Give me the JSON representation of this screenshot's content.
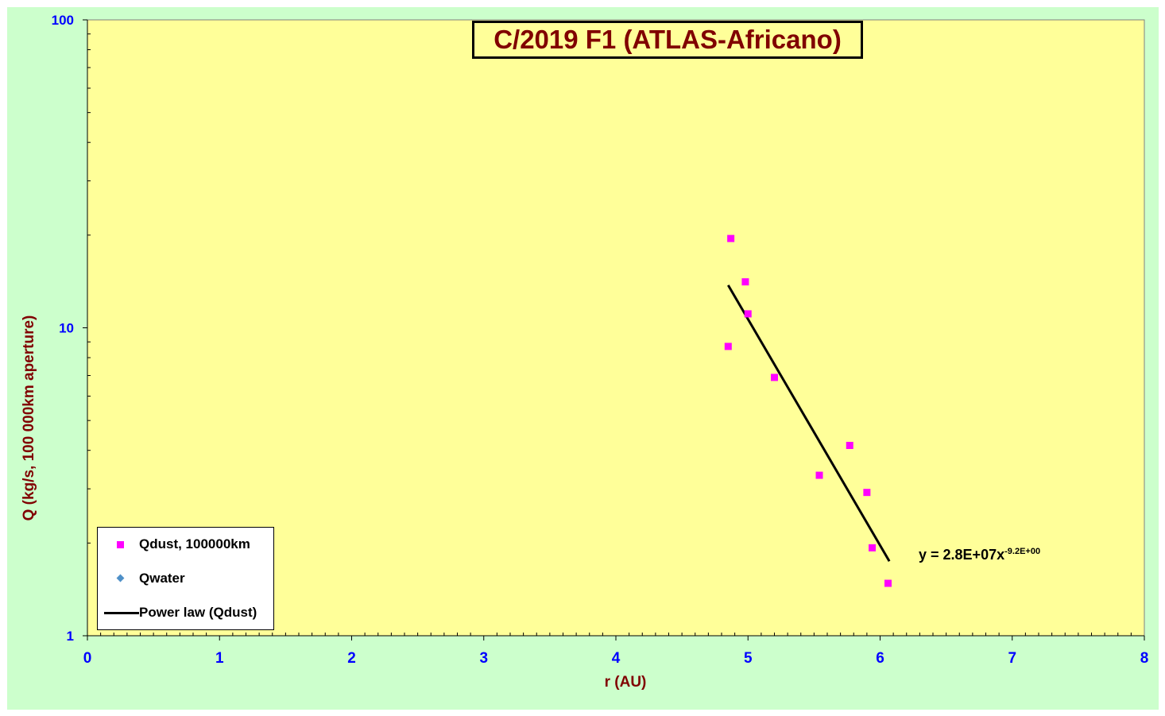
{
  "chart_data": {
    "type": "scatter",
    "title": "C/2019 F1 (ATLAS-Africano)",
    "xlabel": "r (AU)",
    "ylabel": "Q (kg/s, 100 000km aperture)",
    "xlim": [
      0,
      8
    ],
    "ylim": [
      1,
      100
    ],
    "y_scale": "log",
    "x_ticks": [
      "0",
      "1",
      "2",
      "3",
      "4",
      "5",
      "6",
      "7",
      "8"
    ],
    "y_ticks": [
      "1",
      "10",
      "100"
    ],
    "grid": false,
    "legend_position": "bottom-left",
    "series": [
      {
        "name": "Qdust, 100000km",
        "marker": "square",
        "color": "#ff00ff",
        "points": [
          {
            "x": 4.87,
            "y": 19.5
          },
          {
            "x": 4.98,
            "y": 14.1
          },
          {
            "x": 5.0,
            "y": 11.1
          },
          {
            "x": 4.85,
            "y": 8.7
          },
          {
            "x": 5.2,
            "y": 6.9
          },
          {
            "x": 5.77,
            "y": 4.15
          },
          {
            "x": 5.54,
            "y": 3.32
          },
          {
            "x": 5.9,
            "y": 2.92
          },
          {
            "x": 5.94,
            "y": 1.93
          },
          {
            "x": 6.06,
            "y": 1.48
          }
        ]
      },
      {
        "name": "Qwater",
        "marker": "diamond",
        "color": "#4f90c8",
        "points": []
      },
      {
        "name": "Power law (Qdust)",
        "type": "line",
        "color": "#000000",
        "x_range": [
          4.85,
          6.07
        ],
        "coefficient": 28000000.0,
        "exponent": -9.2,
        "equation_text": "y = 2.8E+07x",
        "equation_exponent": "-9.2E+00"
      }
    ]
  },
  "colors": {
    "frame": "#ccffcc",
    "plot_area": "#ffff99",
    "tick_labels": "#0000ff",
    "axis_titles": "#800000",
    "title": "#800000"
  }
}
